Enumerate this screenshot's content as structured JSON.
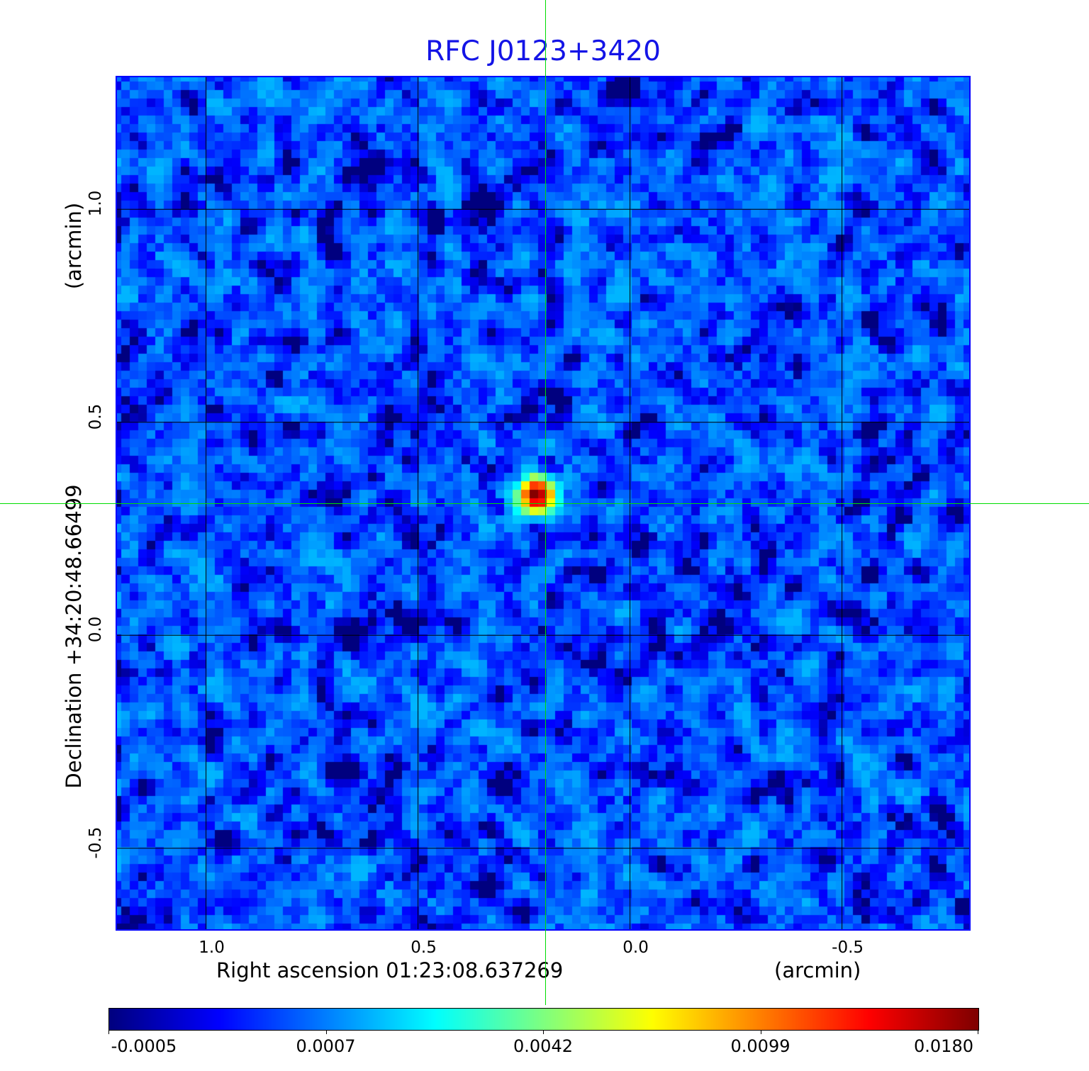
{
  "chart_data": {
    "type": "heatmap",
    "title": "RFC J0123+3420",
    "xlabel": "Right ascension  01:23:08.637269",
    "xlabel_unit": "(arcmin)",
    "ylabel": "Declination  +34:20:48.66499",
    "ylabel_unit": "(arcmin)",
    "xlim": [
      1.21,
      -0.8
    ],
    "ylim": [
      -0.69,
      1.31
    ],
    "x_ticks": [
      "1.0",
      "0.5",
      "0.0",
      "-0.5"
    ],
    "x_tick_values": [
      1.0,
      0.5,
      0.0,
      -0.5
    ],
    "y_ticks": [
      "1.0",
      "0.5",
      "0.0",
      "-0.5"
    ],
    "y_tick_values": [
      1.0,
      0.5,
      0.0,
      -0.5
    ],
    "grid": true,
    "grid_color": "#000000",
    "colormap": "jet",
    "color_scale": "sqrt",
    "colorbar": {
      "placement": "bottom",
      "range": [
        -0.0005,
        0.018
      ],
      "ticks": [
        "-0.0005",
        "0.0007",
        "0.0042",
        "0.0099",
        "0.0180"
      ]
    },
    "source": {
      "x": 0.2,
      "y": 0.31,
      "peak": 0.018
    },
    "crosshair": {
      "x": 0.2,
      "y": 0.31,
      "color": "#00dd00"
    },
    "background_level": [
      -0.0005,
      0.0012
    ]
  }
}
